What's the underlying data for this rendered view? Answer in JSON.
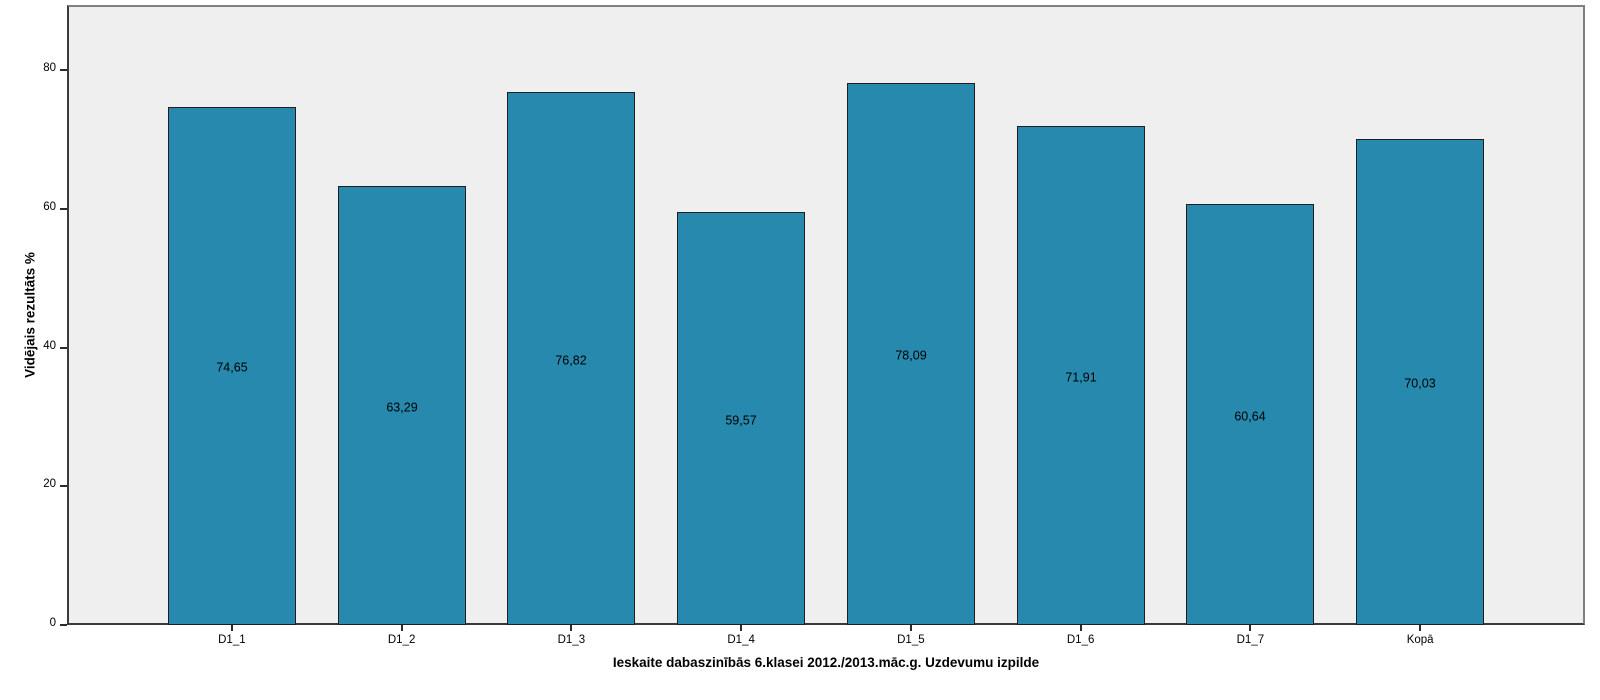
{
  "chart_data": {
    "type": "bar",
    "categories": [
      "D1_1",
      "D1_2",
      "D1_3",
      "D1_4",
      "D1_5",
      "D1_6",
      "D1_7",
      "Kopā"
    ],
    "values": [
      74.65,
      63.29,
      76.82,
      59.57,
      78.09,
      71.91,
      60.64,
      70.03
    ],
    "value_labels": [
      "74,65",
      "63,29",
      "76,82",
      "59,57",
      "78,09",
      "71,91",
      "60,64",
      "70,03"
    ],
    "title": "",
    "xlabel": "Ieskaite dabaszinībās 6.klasei 2012./2013.māc.g. Uzdevumu izpilde",
    "ylabel": "Vidējais rezultāts %",
    "ylim": [
      0,
      89.4
    ],
    "yticks": [
      0,
      20,
      40,
      60,
      80
    ],
    "grid": false,
    "legend": "none",
    "colors": {
      "bar_fill": "#2789AD",
      "bar_stroke": "#1f1f1f",
      "plot_background": "#EFEFEF",
      "frame": "#808080",
      "axis": "#3a3a3a",
      "text": "#000000",
      "page_background": "#ffffff"
    }
  }
}
